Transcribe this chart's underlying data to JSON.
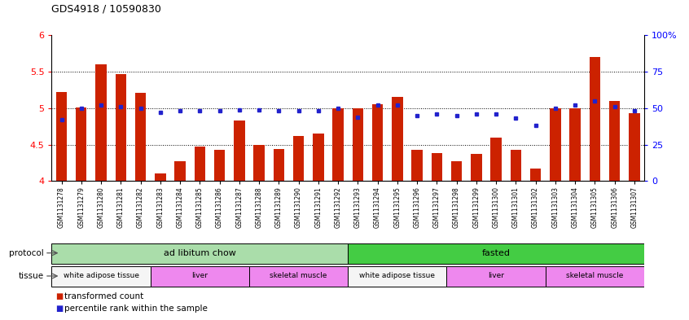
{
  "title": "GDS4918 / 10590830",
  "samples": [
    "GSM1131278",
    "GSM1131279",
    "GSM1131280",
    "GSM1131281",
    "GSM1131282",
    "GSM1131283",
    "GSM1131284",
    "GSM1131285",
    "GSM1131286",
    "GSM1131287",
    "GSM1131288",
    "GSM1131289",
    "GSM1131290",
    "GSM1131291",
    "GSM1131292",
    "GSM1131293",
    "GSM1131294",
    "GSM1131295",
    "GSM1131296",
    "GSM1131297",
    "GSM1131298",
    "GSM1131299",
    "GSM1131300",
    "GSM1131301",
    "GSM1131302",
    "GSM1131303",
    "GSM1131304",
    "GSM1131305",
    "GSM1131306",
    "GSM1131307"
  ],
  "bar_values": [
    5.22,
    5.01,
    5.6,
    5.47,
    5.21,
    4.1,
    4.27,
    4.47,
    4.43,
    4.83,
    4.5,
    4.44,
    4.62,
    4.65,
    5.0,
    5.0,
    5.05,
    5.15,
    4.43,
    4.38,
    4.27,
    4.37,
    4.6,
    4.43,
    4.17,
    5.0,
    5.0,
    5.7,
    5.1,
    4.93
  ],
  "dot_percentiles": [
    42,
    50,
    52,
    51,
    50,
    47,
    48,
    48,
    48,
    49,
    49,
    48,
    48,
    48,
    50,
    44,
    52,
    52,
    45,
    46,
    45,
    46,
    46,
    43,
    38,
    50,
    52,
    55,
    51,
    48
  ],
  "ylim_left": [
    4.0,
    6.0
  ],
  "ylim_right": [
    0,
    100
  ],
  "yticks_left": [
    4.0,
    4.5,
    5.0,
    5.5,
    6.0
  ],
  "ytick_labels_left": [
    "4",
    "4.5",
    "5",
    "5.5",
    "6"
  ],
  "yticks_right": [
    0,
    25,
    50,
    75,
    100
  ],
  "ytick_labels_right": [
    "0",
    "25",
    "50",
    "75",
    "100%"
  ],
  "hlines": [
    4.5,
    5.0,
    5.5
  ],
  "bar_color": "#cc2200",
  "dot_color": "#2222cc",
  "bar_width": 0.55,
  "protocol_groups": [
    {
      "label": "ad libitum chow",
      "start": 0,
      "end": 14,
      "color": "#aaddaa"
    },
    {
      "label": "fasted",
      "start": 15,
      "end": 29,
      "color": "#44cc44"
    }
  ],
  "tissue_groups": [
    {
      "label": "white adipose tissue",
      "start": 0,
      "end": 4,
      "color": "#f5f5f5"
    },
    {
      "label": "liver",
      "start": 5,
      "end": 9,
      "color": "#ee88ee"
    },
    {
      "label": "skeletal muscle",
      "start": 10,
      "end": 14,
      "color": "#ee88ee"
    },
    {
      "label": "white adipose tissue",
      "start": 15,
      "end": 19,
      "color": "#f5f5f5"
    },
    {
      "label": "liver",
      "start": 20,
      "end": 24,
      "color": "#ee88ee"
    },
    {
      "label": "skeletal muscle",
      "start": 25,
      "end": 29,
      "color": "#ee88ee"
    }
  ],
  "protocol_label": "protocol",
  "tissue_label": "tissue",
  "legend_bar_label": "transformed count",
  "legend_dot_label": "percentile rank within the sample"
}
